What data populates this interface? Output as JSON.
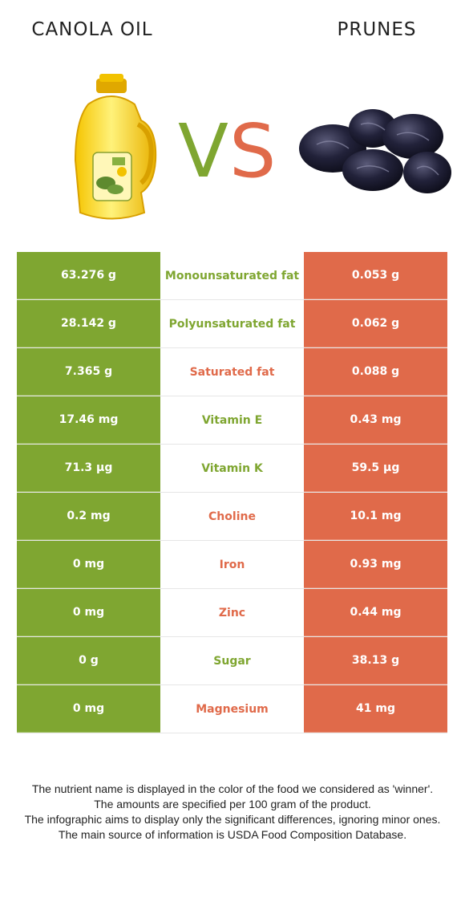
{
  "left_food": {
    "name": "CANOLA OIL",
    "color": "#7fa631"
  },
  "right_food": {
    "name": "PRUNES",
    "color": "#e06a4a"
  },
  "vs": {
    "v": "V",
    "s": "S"
  },
  "rows": [
    {
      "nutrient": "Monounsaturated fat",
      "left": "63.276 g",
      "right": "0.053 g",
      "winner": "left"
    },
    {
      "nutrient": "Polyunsaturated fat",
      "left": "28.142 g",
      "right": "0.062 g",
      "winner": "left"
    },
    {
      "nutrient": "Saturated fat",
      "left": "7.365 g",
      "right": "0.088 g",
      "winner": "right"
    },
    {
      "nutrient": "Vitamin E",
      "left": "17.46 mg",
      "right": "0.43 mg",
      "winner": "left"
    },
    {
      "nutrient": "Vitamin K",
      "left": "71.3 µg",
      "right": "59.5 µg",
      "winner": "left"
    },
    {
      "nutrient": "Choline",
      "left": "0.2 mg",
      "right": "10.1 mg",
      "winner": "right"
    },
    {
      "nutrient": "Iron",
      "left": "0 mg",
      "right": "0.93 mg",
      "winner": "right"
    },
    {
      "nutrient": "Zinc",
      "left": "0 mg",
      "right": "0.44 mg",
      "winner": "right"
    },
    {
      "nutrient": "Sugar",
      "left": "0 g",
      "right": "38.13 g",
      "winner": "left"
    },
    {
      "nutrient": "Magnesium",
      "left": "0 mg",
      "right": "41 mg",
      "winner": "right"
    }
  ],
  "footer": {
    "line1": "The nutrient name is displayed in the color of the food we considered as 'winner'.",
    "line2": "The amounts are specified per 100 gram of the product.",
    "line3": "The infographic aims to display only the significant differences, ignoring minor ones.",
    "line4": "The main source of information is USDA Food Composition Database."
  }
}
